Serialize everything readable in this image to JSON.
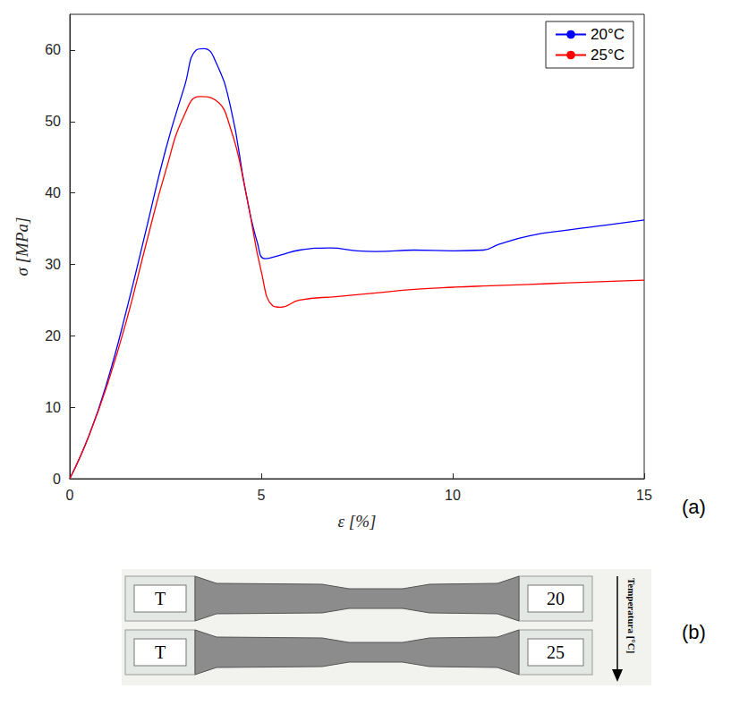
{
  "chart_data": {
    "type": "line",
    "panel_label": "(a)",
    "x_label": "ε [%]",
    "y_label": "σ [MPa]",
    "xlim": [
      0,
      15
    ],
    "xticks": [
      0,
      5,
      10,
      15
    ],
    "ylim": [
      0,
      65
    ],
    "yticks": [
      0,
      10,
      20,
      30,
      40,
      50,
      60
    ],
    "grid": false,
    "legend": "upper right",
    "series": [
      {
        "name": "20°C",
        "color": "#0000ff",
        "x": [
          0,
          0.5,
          1,
          1.5,
          2,
          2.5,
          3,
          3.3,
          3.5,
          3.8,
          4.2,
          4.6,
          4.9,
          5.1,
          5.5,
          6,
          6.8,
          7.5,
          8,
          9,
          10,
          10.8,
          11.2,
          12,
          13,
          14,
          15
        ],
        "values": [
          0,
          6,
          14,
          24,
          35,
          46,
          55,
          60,
          60.2,
          58.5,
          52,
          40,
          33,
          30.8,
          31.3,
          32,
          32.3,
          31.9,
          31.8,
          32,
          31.9,
          32,
          32.8,
          34,
          34.8,
          35.5,
          36.2
        ]
      },
      {
        "name": "25°C",
        "color": "#ff0000",
        "x": [
          0,
          0.5,
          1,
          1.5,
          2,
          2.5,
          3,
          3.4,
          3.8,
          4.2,
          4.6,
          5,
          5.3,
          5.5,
          6,
          7,
          8,
          9,
          10,
          11,
          12,
          13,
          14,
          15
        ],
        "values": [
          0,
          6,
          13.5,
          22.5,
          33,
          43,
          51,
          53.5,
          53,
          49,
          40,
          29,
          24.2,
          24,
          25,
          25.5,
          26,
          26.5,
          26.8,
          27,
          27.2,
          27.4,
          27.6,
          27.8
        ]
      }
    ]
  },
  "photo": {
    "panel_label": "(b)",
    "arrow_label": "Temperatura [°C]",
    "specimens": [
      {
        "left": "T",
        "right": "20"
      },
      {
        "left": "T",
        "right": "25"
      }
    ]
  }
}
